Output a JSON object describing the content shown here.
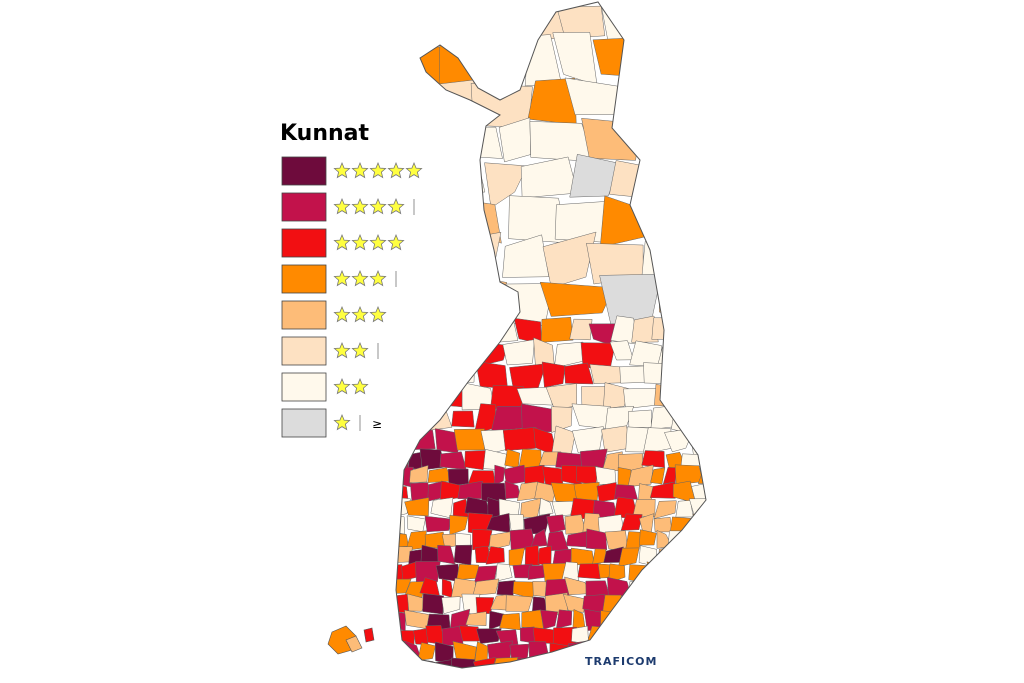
{
  "legend": {
    "title": "Kunnat",
    "items": [
      {
        "color": "#6e0b3c",
        "stars": 5
      },
      {
        "color": "#c2124b",
        "stars": 4.5
      },
      {
        "color": "#f20f12",
        "stars": 4
      },
      {
        "color": "#ff8a00",
        "stars": 3.5
      },
      {
        "color": "#fdbc78",
        "stars": 3
      },
      {
        "color": "#fde1c2",
        "stars": 2.5
      },
      {
        "color": "#fff9ec",
        "stars": 2
      },
      {
        "color": "#dcdcdc",
        "stars": 1.5,
        "suffix": "≥"
      }
    ]
  },
  "logo": "TRAFICOM"
}
